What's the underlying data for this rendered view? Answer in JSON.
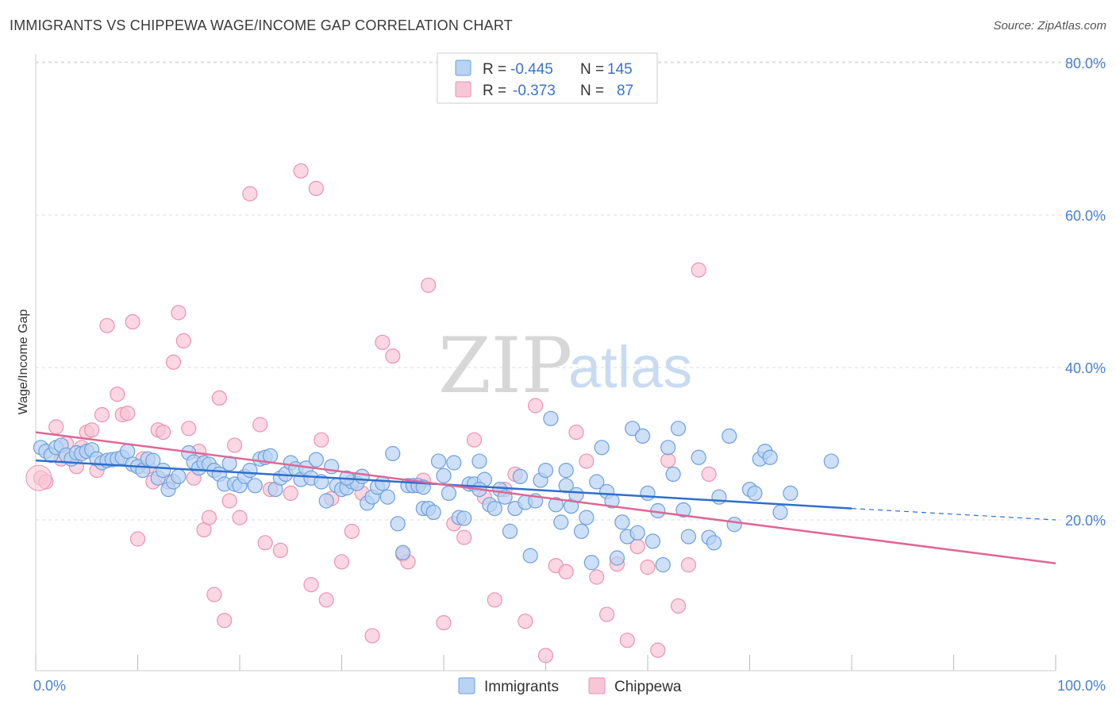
{
  "title": "IMMIGRANTS VS CHIPPEWA WAGE/INCOME GAP CORRELATION CHART",
  "source": "Source: ZipAtlas.com",
  "watermark": {
    "zip": "ZIP",
    "atlas": "atlas"
  },
  "colors": {
    "immigrants_fill": "#b8d3f3",
    "immigrants_stroke": "#6d9fdc",
    "immigrants_line": "#2e6fcc",
    "chippewa_fill": "#f8c6d6",
    "chippewa_stroke": "#eb93b0",
    "chippewa_line": "#e06694",
    "axis_label": "#4a7fd0",
    "grid": "#dddddd"
  },
  "legend": {
    "rows": [
      {
        "r_label": "R =",
        "r_value": "-0.445",
        "n_label": "N =",
        "n_value": "145"
      },
      {
        "r_label": "R =",
        "r_value": "-0.373",
        "n_label": "N =",
        "n_value": "87"
      }
    ]
  },
  "chart_data": {
    "type": "scatter",
    "title": "IMMIGRANTS VS CHIPPEWA WAGE/INCOME GAP CORRELATION CHART",
    "xlabel": "",
    "ylabel": "Wage/Income Gap",
    "xlim": [
      0,
      100
    ],
    "ylim": [
      0,
      85
    ],
    "x_tick_labels": [
      {
        "value": 0,
        "label": "0.0%"
      },
      {
        "value": 100,
        "label": "100.0%"
      }
    ],
    "x_minor_ticks": [
      10,
      20,
      30,
      40,
      50,
      60,
      70,
      80,
      90
    ],
    "y_ticks": [
      {
        "value": 20,
        "label": "20.0%"
      },
      {
        "value": 40,
        "label": "40.0%"
      },
      {
        "value": 60,
        "label": "60.0%"
      },
      {
        "value": 80,
        "label": "80.0%"
      }
    ],
    "grid": true,
    "legend_placement": "top-center",
    "series": [
      {
        "name": "Immigrants",
        "r": -0.445,
        "n": 145,
        "trend": {
          "x0": 0,
          "y0": 27.8,
          "x1": 80,
          "y1": 21.5,
          "dashed_to_x": 100,
          "dashed_to_y": 20.0
        },
        "points": [
          [
            0.5,
            29.5
          ],
          [
            1,
            29
          ],
          [
            1.5,
            28.5
          ],
          [
            2,
            29.5
          ],
          [
            2.5,
            29.8
          ],
          [
            3,
            28.5
          ],
          [
            3.5,
            28
          ],
          [
            4,
            28.8
          ],
          [
            4.5,
            28.7
          ],
          [
            5,
            29
          ],
          [
            5.5,
            29.2
          ],
          [
            6,
            28
          ],
          [
            6.5,
            27.5
          ],
          [
            7,
            27.8
          ],
          [
            7.5,
            27.9
          ],
          [
            8,
            28
          ],
          [
            8.5,
            28.2
          ],
          [
            9,
            29
          ],
          [
            9.5,
            27.3
          ],
          [
            10,
            27
          ],
          [
            10.5,
            26.5
          ],
          [
            11,
            28
          ],
          [
            11.5,
            27.8
          ],
          [
            12,
            25.5
          ],
          [
            12.5,
            26.5
          ],
          [
            13,
            24
          ],
          [
            13.5,
            25
          ],
          [
            14,
            25.7
          ],
          [
            15,
            28.8
          ],
          [
            15.5,
            27.6
          ],
          [
            16,
            26.8
          ],
          [
            16.5,
            27.5
          ],
          [
            17,
            27.3
          ],
          [
            17.5,
            26.5
          ],
          [
            18,
            26
          ],
          [
            18.5,
            24.7
          ],
          [
            19,
            27.4
          ],
          [
            19.5,
            24.7
          ],
          [
            20,
            24.5
          ],
          [
            20.5,
            25.7
          ],
          [
            21,
            26.5
          ],
          [
            21.5,
            24.5
          ],
          [
            22,
            28
          ],
          [
            22.5,
            28.2
          ],
          [
            23,
            28.4
          ],
          [
            23.5,
            24
          ],
          [
            24,
            25.5
          ],
          [
            24.5,
            26
          ],
          [
            25,
            27.5
          ],
          [
            25.5,
            26.7
          ],
          [
            26,
            25.3
          ],
          [
            26.5,
            26.8
          ],
          [
            27,
            25.5
          ],
          [
            27.5,
            27.9
          ],
          [
            28,
            25
          ],
          [
            28.5,
            22.5
          ],
          [
            29,
            27
          ],
          [
            29.5,
            24.5
          ],
          [
            30,
            24
          ],
          [
            30.5,
            24.2
          ],
          [
            31,
            25
          ],
          [
            31.5,
            24.8
          ],
          [
            32,
            25.7
          ],
          [
            32.5,
            22.2
          ],
          [
            33,
            23
          ],
          [
            33.5,
            24.3
          ],
          [
            34,
            24.8
          ],
          [
            34.5,
            23
          ],
          [
            35,
            28.7
          ],
          [
            35.5,
            19.5
          ],
          [
            36,
            15.7
          ],
          [
            36.5,
            24.5
          ],
          [
            37,
            24.5
          ],
          [
            37.5,
            24.5
          ],
          [
            38,
            21.5
          ],
          [
            38.5,
            21.5
          ],
          [
            39,
            21
          ],
          [
            39.5,
            27.7
          ],
          [
            40,
            25.8
          ],
          [
            40.5,
            23.5
          ],
          [
            41,
            27.5
          ],
          [
            41.5,
            20.3
          ],
          [
            42,
            20.2
          ],
          [
            42.5,
            24.7
          ],
          [
            43,
            24.7
          ],
          [
            43.5,
            27.7
          ],
          [
            44,
            25.3
          ],
          [
            44.5,
            22
          ],
          [
            45,
            21.5
          ],
          [
            45.5,
            24
          ],
          [
            46,
            23
          ],
          [
            46.5,
            18.5
          ],
          [
            47,
            21.5
          ],
          [
            47.5,
            25.7
          ],
          [
            48,
            22.3
          ],
          [
            48.5,
            15.3
          ],
          [
            49,
            22.5
          ],
          [
            49.5,
            25.2
          ],
          [
            50,
            26.5
          ],
          [
            50.5,
            33.3
          ],
          [
            51,
            22
          ],
          [
            51.5,
            19.7
          ],
          [
            52,
            24.5
          ],
          [
            52.5,
            21.8
          ],
          [
            53,
            23.3
          ],
          [
            53.5,
            18.5
          ],
          [
            54,
            20.3
          ],
          [
            54.5,
            14.4
          ],
          [
            55,
            25
          ],
          [
            55.5,
            29.5
          ],
          [
            56,
            23.7
          ],
          [
            56.5,
            22.5
          ],
          [
            57,
            15
          ],
          [
            57.5,
            19.7
          ],
          [
            58,
            17.8
          ],
          [
            58.5,
            32
          ],
          [
            59,
            18.3
          ],
          [
            59.5,
            31
          ],
          [
            60,
            23.5
          ],
          [
            60.5,
            17.2
          ],
          [
            61,
            21.2
          ],
          [
            61.5,
            14.1
          ],
          [
            62,
            29.5
          ],
          [
            62.5,
            26
          ],
          [
            63,
            32
          ],
          [
            63.5,
            21.3
          ],
          [
            64,
            17.8
          ],
          [
            65,
            28.2
          ],
          [
            66,
            17.7
          ],
          [
            66.5,
            17
          ],
          [
            67,
            23
          ],
          [
            68,
            31
          ],
          [
            68.5,
            19.4
          ],
          [
            70,
            24
          ],
          [
            70.5,
            23.5
          ],
          [
            71,
            28
          ],
          [
            71.5,
            29
          ],
          [
            72,
            28.2
          ],
          [
            73,
            21
          ],
          [
            74,
            23.5
          ],
          [
            78,
            27.7
          ],
          [
            30.5,
            25.5
          ],
          [
            52,
            26.5
          ],
          [
            43.5,
            24
          ],
          [
            38,
            24.3
          ]
        ]
      },
      {
        "name": "Chippewa",
        "r": -0.373,
        "n": 87,
        "trend": {
          "x0": 0,
          "y0": 31.5,
          "x1": 100,
          "y1": 14.3
        },
        "points": [
          [
            0.5,
            25.5
          ],
          [
            1,
            25
          ],
          [
            2,
            32.2
          ],
          [
            2.5,
            28
          ],
          [
            3,
            30
          ],
          [
            4,
            27
          ],
          [
            4.5,
            29.5
          ],
          [
            5,
            31.5
          ],
          [
            5.5,
            31.8
          ],
          [
            6,
            26.5
          ],
          [
            6.5,
            33.8
          ],
          [
            7,
            45.5
          ],
          [
            8,
            36.5
          ],
          [
            8.5,
            33.8
          ],
          [
            9,
            34
          ],
          [
            9.5,
            46
          ],
          [
            10,
            17.5
          ],
          [
            10.5,
            28
          ],
          [
            11,
            27
          ],
          [
            11.5,
            25
          ],
          [
            12,
            31.8
          ],
          [
            12.5,
            31.5
          ],
          [
            13,
            25
          ],
          [
            13.5,
            40.7
          ],
          [
            14,
            47.2
          ],
          [
            14.5,
            43.5
          ],
          [
            15,
            32
          ],
          [
            15.5,
            25.5
          ],
          [
            16,
            29
          ],
          [
            16.5,
            18.7
          ],
          [
            17,
            20.3
          ],
          [
            17.5,
            10.2
          ],
          [
            18,
            36
          ],
          [
            18.5,
            6.8
          ],
          [
            19,
            22.5
          ],
          [
            19.5,
            29.8
          ],
          [
            20,
            20.3
          ],
          [
            21,
            62.8
          ],
          [
            22,
            32.5
          ],
          [
            22.5,
            17
          ],
          [
            23,
            24
          ],
          [
            24,
            16
          ],
          [
            25,
            23.5
          ],
          [
            26,
            65.8
          ],
          [
            27,
            11.5
          ],
          [
            27.5,
            63.5
          ],
          [
            28,
            30.5
          ],
          [
            28.5,
            9.5
          ],
          [
            29,
            22.8
          ],
          [
            30,
            14.5
          ],
          [
            31,
            18.5
          ],
          [
            32,
            23.5
          ],
          [
            33,
            4.8
          ],
          [
            34,
            43.3
          ],
          [
            35,
            41.5
          ],
          [
            36,
            15.5
          ],
          [
            36.5,
            14.5
          ],
          [
            37,
            24.5
          ],
          [
            38,
            25.2
          ],
          [
            38.5,
            50.8
          ],
          [
            40,
            6.5
          ],
          [
            41,
            19.5
          ],
          [
            42,
            17.7
          ],
          [
            43,
            30.5
          ],
          [
            44,
            23
          ],
          [
            45,
            9.5
          ],
          [
            46,
            24
          ],
          [
            47,
            26
          ],
          [
            48,
            6.7
          ],
          [
            49,
            35
          ],
          [
            50,
            2.2
          ],
          [
            51,
            14
          ],
          [
            52,
            13.2
          ],
          [
            53,
            31.5
          ],
          [
            54,
            27.7
          ],
          [
            55,
            12.5
          ],
          [
            56,
            7.6
          ],
          [
            57,
            14.2
          ],
          [
            58,
            4.2
          ],
          [
            59,
            16.5
          ],
          [
            60,
            13.8
          ],
          [
            61,
            2.9
          ],
          [
            62,
            27.8
          ],
          [
            63,
            8.7
          ],
          [
            64,
            14.1
          ],
          [
            65,
            52.8
          ],
          [
            66,
            26
          ]
        ]
      }
    ]
  }
}
